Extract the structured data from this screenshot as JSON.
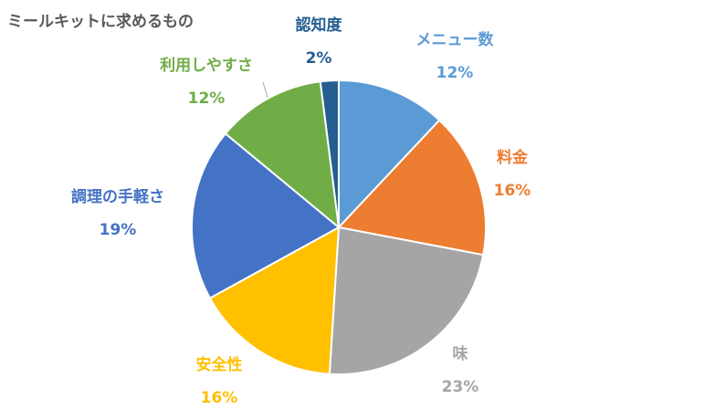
{
  "chart_data": {
    "type": "pie",
    "title": "ミールキットに求めるもの",
    "legend": "none",
    "slices": [
      {
        "name": "メニュー数",
        "value": 12,
        "label": "12%",
        "color": "#5B9BD5"
      },
      {
        "name": "料金",
        "value": 16,
        "label": "16%",
        "color": "#ED7D31"
      },
      {
        "name": "味",
        "value": 23,
        "label": "23%",
        "color": "#A5A5A5"
      },
      {
        "name": "安全性",
        "value": 16,
        "label": "16%",
        "color": "#FFC000"
      },
      {
        "name": "調理の手軽さ",
        "value": 19,
        "label": "19%",
        "color": "#4472C4"
      },
      {
        "name": "利用しやすさ",
        "value": 12,
        "label": "12%",
        "color": "#70AD47"
      },
      {
        "name": "認知度",
        "value": 2,
        "label": "2%",
        "color": "#255E91"
      }
    ]
  }
}
